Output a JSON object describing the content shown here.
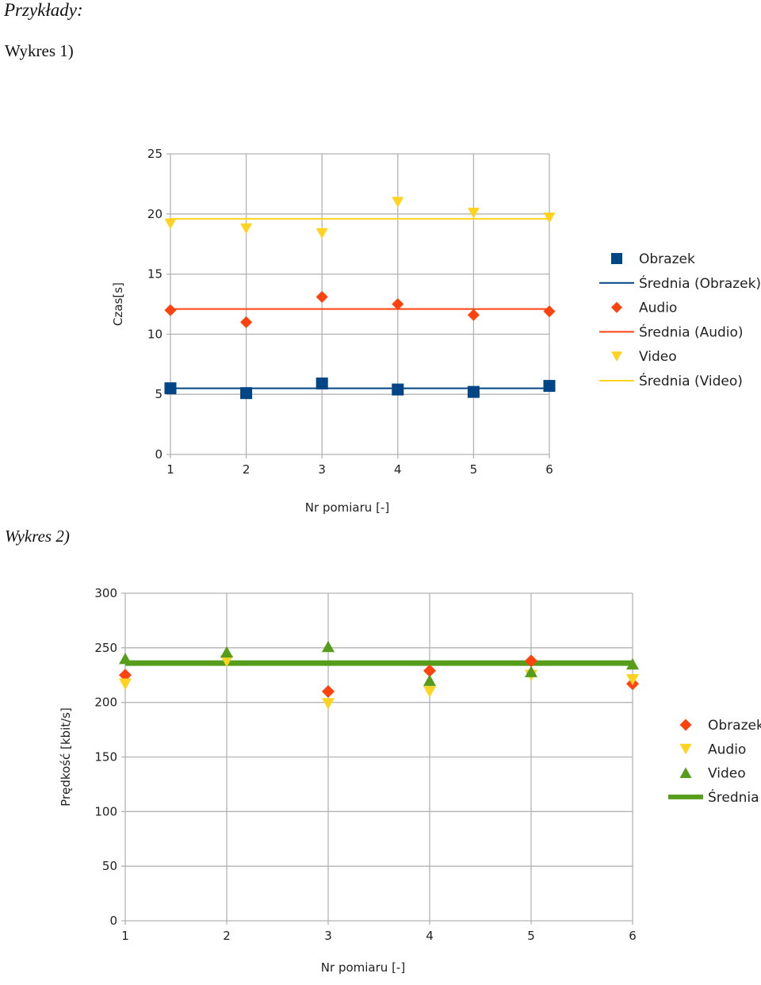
{
  "page": {
    "heading": "Przykłady:",
    "label1": "Wykres 1)",
    "label2": "Wykres 2)"
  },
  "chart_data": [
    {
      "type": "scatter",
      "x": [
        1,
        2,
        3,
        4,
        5,
        6
      ],
      "xlabel": "Nr pomiaru [-]",
      "ylabel": "Czas[s]",
      "ylim": [
        0,
        25
      ],
      "xlim": [
        1,
        6
      ],
      "yticks": [
        0,
        5,
        10,
        15,
        20,
        25
      ],
      "grid": true,
      "legend_position": "right",
      "series": [
        {
          "name": "Obrazek",
          "values": [
            5.5,
            5.1,
            5.9,
            5.4,
            5.2,
            5.7
          ],
          "color": "#004586",
          "marker": "square"
        },
        {
          "name": "Średnia (Obrazek)",
          "type": "line",
          "value": 5.5,
          "color": "#004586"
        },
        {
          "name": "Audio",
          "values": [
            12.0,
            11.0,
            13.1,
            12.5,
            11.6,
            11.9
          ],
          "color": "#ff420e",
          "marker": "diamond"
        },
        {
          "name": "Średnia (Audio)",
          "type": "line",
          "value": 12.1,
          "color": "#ff420e"
        },
        {
          "name": "Video",
          "values": [
            19.2,
            18.8,
            18.4,
            21.0,
            20.1,
            19.7
          ],
          "color": "#ffd320",
          "marker": "triangle-down"
        },
        {
          "name": "Średnia (Video)",
          "type": "line",
          "value": 19.6,
          "color": "#ffd320"
        }
      ]
    },
    {
      "type": "scatter",
      "x": [
        1,
        2,
        3,
        4,
        5,
        6
      ],
      "xlabel": "Nr pomiaru [-]",
      "ylabel": "Prędkość [kbit/s]",
      "ylim": [
        0,
        300
      ],
      "xlim": [
        1,
        6
      ],
      "yticks": [
        0,
        50,
        100,
        150,
        200,
        250,
        300
      ],
      "grid": true,
      "legend_position": "right",
      "series": [
        {
          "name": "Obrazek",
          "values": [
            225,
            242,
            210,
            229,
            238,
            217
          ],
          "color": "#ff420e",
          "marker": "diamond"
        },
        {
          "name": "Audio",
          "values": [
            217,
            238,
            199,
            210,
            225,
            221
          ],
          "color": "#ffd320",
          "marker": "triangle-down"
        },
        {
          "name": "Video",
          "values": [
            240,
            246,
            251,
            220,
            228,
            235
          ],
          "color": "#579d1c",
          "marker": "triangle-up"
        },
        {
          "name": "Średnia",
          "type": "line",
          "value": 236,
          "color": "#579d1c"
        }
      ]
    }
  ]
}
